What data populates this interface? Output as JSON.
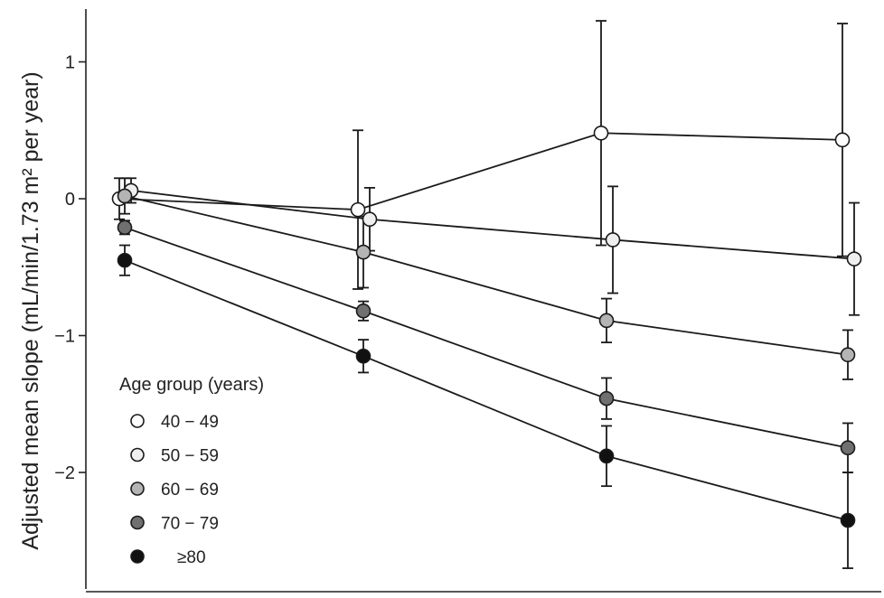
{
  "chart_data": {
    "type": "line",
    "title": "",
    "xlabel": "",
    "ylabel": "Adjusted mean slope (mL/min/1.73 m² per year)",
    "ylim": [
      -2.85,
      1.4
    ],
    "yticks": [
      1,
      0,
      -1,
      -2
    ],
    "ytick_labels": [
      "1",
      "0",
      "−1",
      "−2"
    ],
    "grid": false,
    "legend_title": "Age group (years)",
    "legend_position": "bottom-left",
    "categories": [
      1,
      2,
      3,
      4
    ],
    "series": [
      {
        "name": "40 − 49",
        "color": "#ffffff",
        "values": [
          0.0,
          -0.08,
          0.48,
          0.43
        ],
        "ci": [
          0.15,
          0.58,
          0.82,
          0.85
        ]
      },
      {
        "name": "50 − 59",
        "color": "#efefef",
        "values": [
          0.06,
          -0.15,
          -0.3,
          -0.44
        ],
        "ci": [
          0.09,
          0.23,
          0.39,
          0.41
        ]
      },
      {
        "name": "60 − 69",
        "color": "#b4b4b4",
        "values": [
          0.02,
          -0.39,
          -0.89,
          -1.14
        ],
        "ci": [
          0.13,
          0.26,
          0.16,
          0.18
        ]
      },
      {
        "name": "70 − 79",
        "color": "#707070",
        "values": [
          -0.21,
          -0.82,
          -1.46,
          -1.82
        ],
        "ci": [
          0.05,
          0.07,
          0.15,
          0.18
        ]
      },
      {
        "name": "≥80",
        "color": "#111111",
        "values": [
          -0.45,
          -1.15,
          -1.88,
          -2.35
        ],
        "ci": [
          0.11,
          0.12,
          0.22,
          0.35
        ]
      }
    ]
  }
}
